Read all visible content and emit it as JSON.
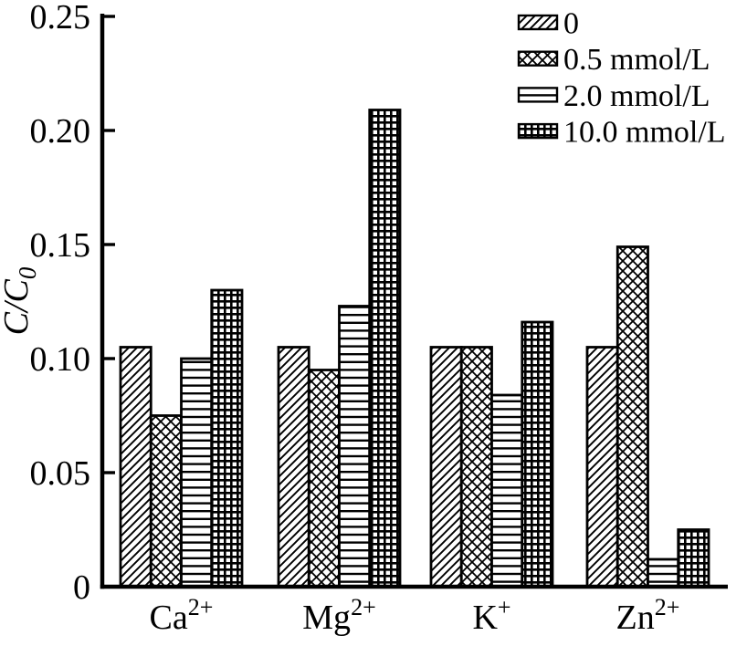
{
  "chart_data": {
    "type": "bar",
    "title": "",
    "xlabel": "",
    "ylabel_main": "C/C",
    "ylabel_sub": "0",
    "categories": [
      {
        "base": "Ca",
        "sup": "2+"
      },
      {
        "base": "Mg",
        "sup": "2+"
      },
      {
        "base": "K",
        "sup": "+"
      },
      {
        "base": "Zn",
        "sup": "2+"
      }
    ],
    "series": [
      {
        "name": "0",
        "pattern": "diagonal-hatch-icon",
        "values": [
          0.105,
          0.105,
          0.105,
          0.105
        ]
      },
      {
        "name": "0.5 mmol/L",
        "pattern": "cross-hatch-icon",
        "values": [
          0.075,
          0.095,
          0.105,
          0.149
        ]
      },
      {
        "name": "2.0 mmol/L",
        "pattern": "horizontal-lines-icon",
        "values": [
          0.1,
          0.123,
          0.084,
          0.012
        ]
      },
      {
        "name": "10.0 mmol/L",
        "pattern": "square-grid-icon",
        "values": [
          0.13,
          0.209,
          0.116,
          0.025
        ]
      }
    ],
    "y_axis": {
      "min": 0,
      "max": 0.25,
      "tick_step": 0.05,
      "tick_labels": [
        "0",
        "0.05",
        "0.10",
        "0.15",
        "0.20",
        "0.25"
      ]
    },
    "legend_position": "top-right",
    "grid": false,
    "colors": {
      "ink": "#000000",
      "background": "#ffffff"
    }
  }
}
